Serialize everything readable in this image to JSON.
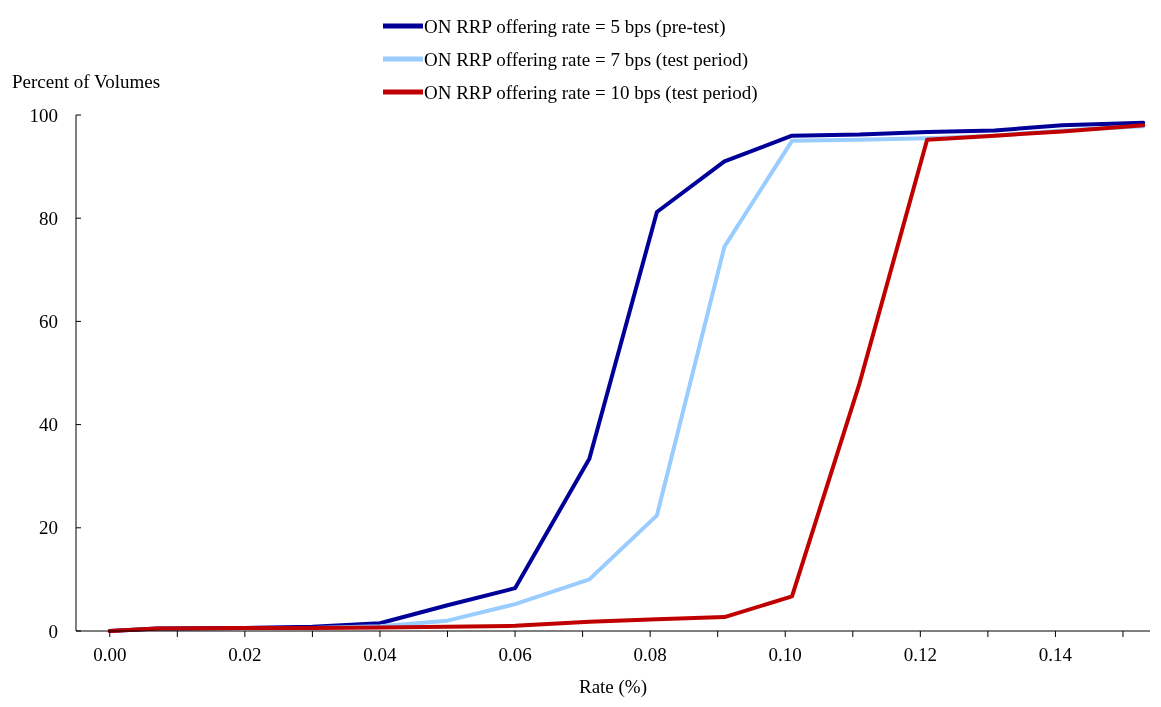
{
  "chart_data": {
    "type": "line",
    "xlabel": "Rate (%)",
    "ylabel": "Percent of Volumes",
    "xlim": [
      -0.005,
      0.154
    ],
    "ylim": [
      0,
      100
    ],
    "xticks": [
      {
        "value": 0,
        "label": "0.00"
      },
      {
        "value": 0.01,
        "label": null
      },
      {
        "value": 0.02,
        "label": "0.02"
      },
      {
        "value": 0.03,
        "label": null
      },
      {
        "value": 0.04,
        "label": "0.04"
      },
      {
        "value": 0.05,
        "label": null
      },
      {
        "value": 0.06,
        "label": "0.06"
      },
      {
        "value": 0.07,
        "label": null
      },
      {
        "value": 0.08,
        "label": "0.08"
      },
      {
        "value": 0.09,
        "label": null
      },
      {
        "value": 0.1,
        "label": "0.10"
      },
      {
        "value": 0.11,
        "label": null
      },
      {
        "value": 0.12,
        "label": "0.12"
      },
      {
        "value": 0.13,
        "label": null
      },
      {
        "value": 0.14,
        "label": "0.14"
      },
      {
        "value": 0.15,
        "label": null
      }
    ],
    "yticks": [
      0,
      20,
      40,
      60,
      80,
      100
    ],
    "grid": false,
    "legend": "top",
    "line_style": "solid",
    "marker": "none",
    "x": [
      0,
      0.007,
      0.02,
      0.03,
      0.04,
      0.05,
      0.06,
      0.071,
      0.081,
      0.091,
      0.101,
      0.111,
      0.121,
      0.131,
      0.141,
      0.153
    ],
    "series": [
      {
        "name": "ON RRP offering rate = 5 bps (pre-test)",
        "color": "#000099",
        "values": [
          0,
          0.5,
          0.6,
          0.8,
          1.5,
          5,
          8.3,
          33.4,
          81.2,
          91,
          96,
          96.2,
          96.7,
          97,
          98,
          98.5
        ]
      },
      {
        "name": "ON RRP offering rate = 7 bps (test period)",
        "color": "#99ccff",
        "values": [
          null,
          null,
          null,
          0.6,
          0.9,
          2,
          5.2,
          10,
          22.4,
          74.5,
          95,
          95.2,
          95.5,
          96,
          97,
          97.8
        ]
      },
      {
        "name": "ON RRP offering rate = 10 bps (test period)",
        "color": "#c00000",
        "values": [
          0,
          0.5,
          0.6,
          0.6,
          0.7,
          0.8,
          1,
          1.8,
          2.3,
          2.7,
          6.7,
          48,
          95.2,
          96,
          96.8,
          98
        ]
      }
    ]
  }
}
